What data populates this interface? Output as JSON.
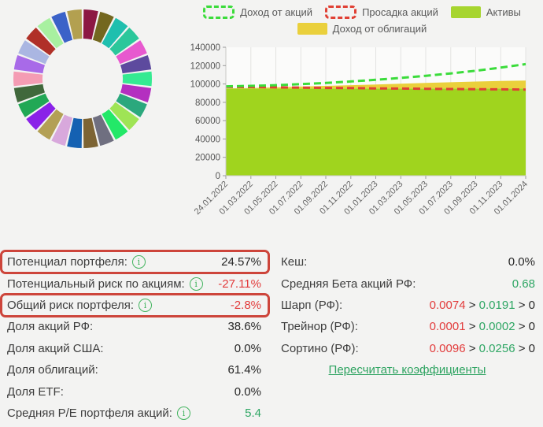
{
  "page": {
    "bg": "#f3f3f2"
  },
  "donut": {
    "name": "portfolio-allocation",
    "inner_ratio": 0.58,
    "segments": [
      {
        "color": "#8c1843"
      },
      {
        "color": "#73671f"
      },
      {
        "color": "#1fbfae"
      },
      {
        "color": "#2bc79b"
      },
      {
        "color": "#e759cf"
      },
      {
        "color": "#5d4a9e"
      },
      {
        "color": "#35ea92"
      },
      {
        "color": "#b42fc0"
      },
      {
        "color": "#2ba87d"
      },
      {
        "color": "#9fe455"
      },
      {
        "color": "#23e868"
      },
      {
        "color": "#6f6f80"
      },
      {
        "color": "#7d6434"
      },
      {
        "color": "#1561b2"
      },
      {
        "color": "#d8a8dc"
      },
      {
        "color": "#b3a055"
      },
      {
        "color": "#8a22e8"
      },
      {
        "color": "#21a855"
      },
      {
        "color": "#40683c"
      },
      {
        "color": "#f49cb4"
      },
      {
        "color": "#a86ae8"
      },
      {
        "color": "#aab6e2"
      },
      {
        "color": "#b03028"
      },
      {
        "color": "#a8f0a0"
      },
      {
        "color": "#3b62c8"
      },
      {
        "color": "#b3a050"
      }
    ]
  },
  "chart_data": {
    "type": "area",
    "title": "",
    "xlabel": "",
    "ylabel": "",
    "ylim": [
      0,
      140000
    ],
    "y_ticks": [
      0,
      20000,
      40000,
      60000,
      80000,
      100000,
      120000,
      140000
    ],
    "x_labels": [
      "24.01.2022",
      "01.03.2022",
      "01.05.2022",
      "01.07.2022",
      "01.09.2022",
      "01.11.2022",
      "01.01.2023",
      "01.03.2023",
      "01.05.2023",
      "01.07.2023",
      "01.09.2023",
      "01.11.2023",
      "01.01.2024"
    ],
    "grid": "vertical-only",
    "legend_position": "top",
    "legend_rows": [
      [
        {
          "label": "Доход от акций",
          "swatch": "dashed",
          "color": "#3bdc3b"
        },
        {
          "label": "Просадка акций",
          "swatch": "dashed",
          "color": "#e04034"
        },
        {
          "label": "Активы",
          "swatch": "solid",
          "color": "#a6d52f"
        }
      ],
      [
        {
          "label": "Доход от облигаций",
          "swatch": "solid",
          "color": "#ead03c"
        }
      ]
    ],
    "series": [
      {
        "name": "Активы",
        "type": "area",
        "color": "#a0d41e",
        "values": [
          95200,
          95200,
          95200,
          95200,
          95200,
          95200,
          95200,
          95200,
          95200,
          95200,
          95200,
          95200,
          95200
        ]
      },
      {
        "name": "Доход от облигаций",
        "type": "band-above-assets",
        "color": "#ead03c",
        "values": [
          95200,
          95600,
          96300,
          97100,
          97900,
          98700,
          99500,
          100300,
          101100,
          101900,
          102600,
          103200,
          103700
        ]
      },
      {
        "name": "Просадка акций",
        "type": "dashed-line",
        "color": "#e04034",
        "values": [
          96800,
          96600,
          96300,
          96000,
          95700,
          95500,
          95200,
          95000,
          94700,
          94500,
          94300,
          94100,
          93900
        ]
      },
      {
        "name": "Доход от акций",
        "type": "dashed-line",
        "color": "#3bdc3b",
        "values": [
          97400,
          97900,
          98700,
          99800,
          101100,
          102700,
          104500,
          106600,
          108900,
          111500,
          114400,
          117800,
          121600
        ]
      }
    ]
  },
  "stats": {
    "left": [
      {
        "label": "Потенциал портфеля:",
        "info": true,
        "highlight": true,
        "parts": [
          {
            "t": "24.57%",
            "c": "dark"
          }
        ]
      },
      {
        "label": "Потенциальный риск по акциям:",
        "info": true,
        "highlight": false,
        "parts": [
          {
            "t": "-27.11%",
            "c": "red"
          }
        ]
      },
      {
        "label": "Общий риск портфеля:",
        "info": true,
        "highlight": true,
        "parts": [
          {
            "t": "-2.8%",
            "c": "red"
          }
        ]
      },
      {
        "label": "Доля акций РФ:",
        "info": false,
        "highlight": false,
        "parts": [
          {
            "t": "38.6%",
            "c": "dark"
          }
        ]
      },
      {
        "label": "Доля акций США:",
        "info": false,
        "highlight": false,
        "parts": [
          {
            "t": "0.0%",
            "c": "dark"
          }
        ]
      },
      {
        "label": "Доля облигаций:",
        "info": false,
        "highlight": false,
        "parts": [
          {
            "t": "61.4%",
            "c": "dark"
          }
        ]
      },
      {
        "label": "Доля ETF:",
        "info": false,
        "highlight": false,
        "parts": [
          {
            "t": "0.0%",
            "c": "dark"
          }
        ]
      },
      {
        "label": "Средняя P/E портфеля акций:",
        "info": true,
        "highlight": false,
        "parts": [
          {
            "t": "5.4",
            "c": "green"
          }
        ]
      }
    ],
    "right": [
      {
        "label": "Кеш:",
        "info": false,
        "highlight": false,
        "parts": [
          {
            "t": "0.0%",
            "c": "dark"
          }
        ]
      },
      {
        "label": "Средняя Бета акций РФ:",
        "info": false,
        "highlight": false,
        "parts": [
          {
            "t": "0.68",
            "c": "green"
          }
        ]
      },
      {
        "label": "Шарп (РФ):",
        "info": false,
        "highlight": false,
        "parts": [
          {
            "t": "0.0074",
            "c": "red"
          },
          {
            "t": " > ",
            "c": "dark"
          },
          {
            "t": "0.0191",
            "c": "green"
          },
          {
            "t": " > ",
            "c": "dark"
          },
          {
            "t": "0",
            "c": "dark"
          }
        ]
      },
      {
        "label": "Трейнор (РФ):",
        "info": false,
        "highlight": false,
        "parts": [
          {
            "t": "0.0001",
            "c": "red"
          },
          {
            "t": " > ",
            "c": "dark"
          },
          {
            "t": "0.0002",
            "c": "green"
          },
          {
            "t": " > ",
            "c": "dark"
          },
          {
            "t": "0",
            "c": "dark"
          }
        ]
      },
      {
        "label": "Сортино (РФ):",
        "info": false,
        "highlight": false,
        "parts": [
          {
            "t": "0.0096",
            "c": "red"
          },
          {
            "t": " > ",
            "c": "dark"
          },
          {
            "t": "0.0256",
            "c": "green"
          },
          {
            "t": " > ",
            "c": "dark"
          },
          {
            "t": "0",
            "c": "dark"
          }
        ]
      }
    ],
    "recalc_link": "Пересчитать коэффициенты"
  },
  "colors": {
    "accent_green": "#2ea664",
    "negative_red": "#e23b3b",
    "highlight_box": "#cd453b",
    "assets_area": "#a0d41e",
    "bonds_area": "#ead03c",
    "stock_income_line": "#3bdc3b",
    "drawdown_line": "#e04034"
  }
}
